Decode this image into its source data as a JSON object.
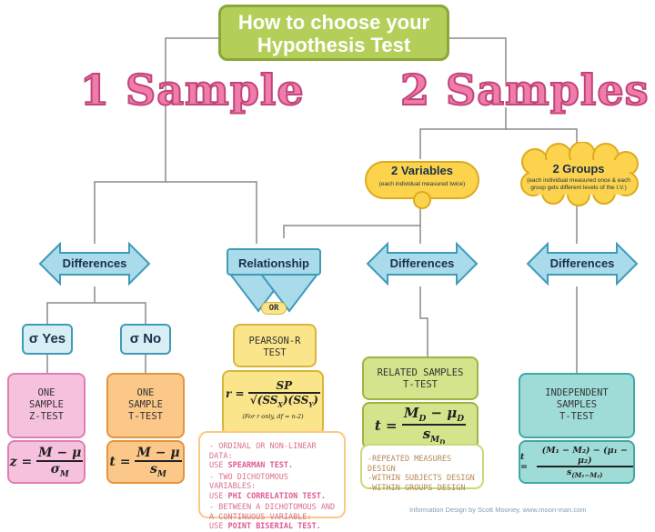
{
  "title": {
    "line1": "How to choose your",
    "line2": "Hypothesis Test"
  },
  "one_sample": "1 Sample",
  "two_samples": "2 Samples",
  "two_variables": {
    "label": "2 Variables",
    "sub": "(each individual measured twice)"
  },
  "two_groups": {
    "label": "2 Groups",
    "sub1": "(each individual measured once & each",
    "sub2": "group gets different levels of the I.V.)"
  },
  "arrows": {
    "differences_1": "Differences",
    "relationship": "Relationship",
    "differences_2": "Differences",
    "differences_3": "Differences",
    "or": "OR"
  },
  "sigma": {
    "yes": "σ Yes",
    "no": "σ No"
  },
  "tests": {
    "one_sample_z": [
      "ONE",
      "SAMPLE",
      "Z-TEST"
    ],
    "one_sample_t": [
      "ONE",
      "SAMPLE",
      "T-TEST"
    ],
    "pearson": [
      "PEARSON-R",
      "TEST"
    ],
    "related": [
      "RELATED SAMPLES",
      "T-TEST"
    ],
    "independent": [
      "INDEPENDENT",
      "SAMPLES",
      "T-TEST"
    ]
  },
  "formulas": {
    "z": {
      "lhs": "z =",
      "num": "M − μ",
      "den": "σ",
      "den_sub": "M"
    },
    "t1": {
      "lhs": "t =",
      "num": "M − μ",
      "den": "s",
      "den_sub": "M"
    },
    "r": {
      "lhs": "r =",
      "num": "SP",
      "den": "√(SS",
      "den_x": "X",
      "den_mid": ")(SS",
      "den_y": "Y",
      "den_end": ")",
      "note": "(For r only, df = n-2)"
    },
    "t2": {
      "lhs": "t =",
      "num": "M",
      "num_sub": "D",
      "num_rest": " − μ",
      "num_sub2": "D",
      "den": "s",
      "den_sub": "M",
      "den_sub2": "D"
    },
    "t3": {
      "lhs": "t =",
      "num": "(M₁ − M₂) − (μ₁ − μ₂)",
      "den": "s",
      "den_sub": "(M₁−M₂)"
    }
  },
  "pearson_notes": [
    {
      "pre": "- ORDINAL OR NON-LINEAR DATA:",
      "line2_pre": "USE ",
      "em": "SPEARMAN TEST.",
      "post": ""
    },
    {
      "pre": "- TWO DICHOTOMOUS VARIABLES:",
      "line2_pre": "USE ",
      "em": "PHI CORRELATION TEST.",
      "post": ""
    },
    {
      "pre": "- BETWEEN A DICHOTOMOUS AND",
      "mid": "A CONTINUOUS VARIABLE:",
      "line2_pre": "USE ",
      "em": "POINT BISERIAL TEST.",
      "post": ""
    }
  ],
  "related_notes": [
    "-REPEATED MEASURES DESIGN",
    "-WITHIN SUBJECTS DESIGN",
    "-WITHIN GROUPS DESIGN"
  ],
  "credit": "Information Design by Scott Mooney, www.moon-man.com",
  "colors": {
    "title_green": "#b3cf5a",
    "pink_heading": "#f07cab",
    "arrow_blue": "#a9dbeb",
    "arrow_border": "#3f9bb8",
    "cloud": "#fcd34d"
  }
}
